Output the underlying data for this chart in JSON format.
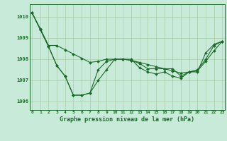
{
  "title": "Graphe pression niveau de la mer (hPa)",
  "background_color": "#c8ead8",
  "grid_color": "#a8cca8",
  "line_color": "#1a6b2a",
  "x_labels": [
    "0",
    "1",
    "2",
    "3",
    "4",
    "5",
    "6",
    "7",
    "8",
    "9",
    "10",
    "11",
    "12",
    "13",
    "14",
    "15",
    "16",
    "17",
    "18",
    "19",
    "20",
    "21",
    "22",
    "23"
  ],
  "y_ticks": [
    1006,
    1007,
    1008,
    1009,
    1010
  ],
  "ylim": [
    1005.6,
    1010.6
  ],
  "xlim": [
    -0.3,
    23.3
  ],
  "series": [
    [
      1010.2,
      1009.4,
      1008.6,
      1007.7,
      1007.2,
      1006.3,
      1006.3,
      1006.4,
      1007.0,
      1007.5,
      1008.0,
      1008.0,
      1008.0,
      1007.6,
      1007.4,
      1007.3,
      1007.4,
      1007.2,
      1007.1,
      1007.4,
      1007.4,
      1008.3,
      1008.7,
      1008.85
    ],
    [
      1010.2,
      1009.4,
      1008.6,
      1007.7,
      1007.2,
      1006.3,
      1006.3,
      1006.4,
      1007.5,
      1007.9,
      1008.0,
      1008.0,
      1007.95,
      1007.8,
      1007.55,
      1007.55,
      1007.55,
      1007.55,
      1007.2,
      1007.4,
      1007.5,
      1008.0,
      1008.65,
      1008.85
    ],
    [
      1010.2,
      1009.45,
      1008.65,
      1008.65,
      1008.45,
      1008.25,
      1008.05,
      1007.85,
      1007.9,
      1008.0,
      1008.0,
      1008.0,
      1007.95,
      1007.85,
      1007.75,
      1007.65,
      1007.55,
      1007.45,
      1007.35,
      1007.4,
      1007.45,
      1007.9,
      1008.4,
      1008.85
    ]
  ]
}
